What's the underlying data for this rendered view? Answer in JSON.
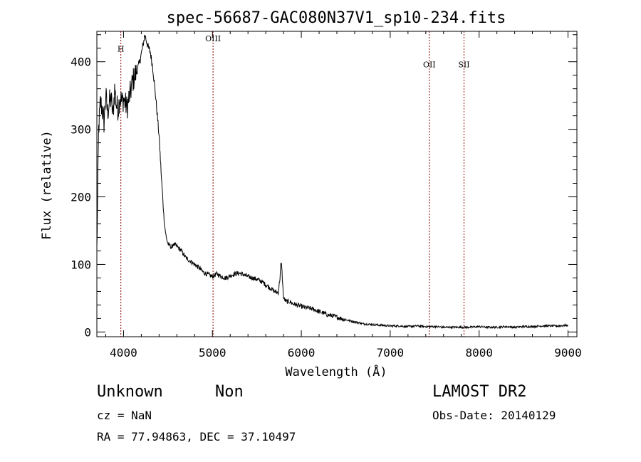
{
  "chart_data": {
    "type": "line",
    "title": "spec-56687-GAC080N37V1_sp10-234.fits",
    "xlabel": "Wavelength (Å)",
    "ylabel": "Flux (relative)",
    "xlim": [
      3700,
      9100
    ],
    "ylim": [
      -7,
      445
    ],
    "xticks": [
      4000,
      5000,
      6000,
      7000,
      8000,
      9000
    ],
    "yticks": [
      0,
      100,
      200,
      300,
      400
    ],
    "grid": false,
    "line_color": "#000000",
    "marker_color": "#8b0000",
    "lines": [
      {
        "label": "H",
        "x": 3970,
        "label_y": 415
      },
      {
        "label": "OIII",
        "x": 5007,
        "label_y": 430
      },
      {
        "label": "OII",
        "x": 7440,
        "label_y": 392
      },
      {
        "label": "SII",
        "x": 7830,
        "label_y": 392
      }
    ],
    "series": [
      {
        "x": [
          3700,
          3720,
          3740,
          3760,
          3780,
          3800,
          3820,
          3840,
          3860,
          3880,
          3900,
          3920,
          3940,
          3960,
          3980,
          4000,
          4020,
          4040,
          4060,
          4080,
          4100,
          4130,
          4160,
          4190,
          4220,
          4240,
          4260,
          4280,
          4300,
          4330,
          4360,
          4400,
          4430,
          4460,
          4480,
          4500,
          4520,
          4540,
          4560,
          4600,
          4650,
          4700,
          4750,
          4800,
          4850,
          4900,
          4950,
          5000,
          5050,
          5100,
          5150,
          5200,
          5250,
          5300,
          5350,
          5400,
          5450,
          5500,
          5550,
          5600,
          5650,
          5700,
          5740,
          5760,
          5770,
          5780,
          5790,
          5800,
          5830,
          5870,
          5900,
          5950,
          6000,
          6050,
          6100,
          6150,
          6200,
          6250,
          6300,
          6350,
          6400,
          6500,
          6600,
          6700,
          6800,
          6900,
          7000,
          7100,
          7200,
          7300,
          7400,
          7500,
          7600,
          7700,
          7800,
          7900,
          8000,
          8100,
          8200,
          8300,
          8400,
          8500,
          8600,
          8700,
          8800,
          8900,
          9000
        ],
        "values": [
          120,
          300,
          340,
          330,
          310,
          350,
          325,
          340,
          345,
          320,
          360,
          335,
          330,
          350,
          340,
          345,
          338,
          332,
          345,
          355,
          370,
          380,
          390,
          405,
          425,
          440,
          430,
          420,
          415,
          390,
          350,
          290,
          220,
          160,
          140,
          130,
          128,
          125,
          130,
          127,
          120,
          110,
          105,
          100,
          95,
          88,
          85,
          82,
          86,
          82,
          80,
          83,
          86,
          87,
          85,
          82,
          80,
          78,
          75,
          70,
          65,
          60,
          58,
          80,
          100,
          98,
          70,
          50,
          45,
          45,
          42,
          40,
          38,
          36,
          35,
          33,
          30,
          28,
          25,
          24,
          22,
          18,
          15,
          12,
          11,
          10,
          9,
          9,
          8,
          9,
          8,
          8,
          7,
          7,
          7,
          7,
          8,
          7,
          7,
          8,
          7,
          8,
          8,
          9,
          9,
          9,
          10
        ]
      }
    ]
  },
  "footer": {
    "object_type": "Unknown",
    "subclass": "Non",
    "survey": "LAMOST DR2",
    "cz": "cz = NaN",
    "obs_date": "Obs-Date: 20140129",
    "radec": "RA =  77.94863, DEC =  37.10497"
  }
}
